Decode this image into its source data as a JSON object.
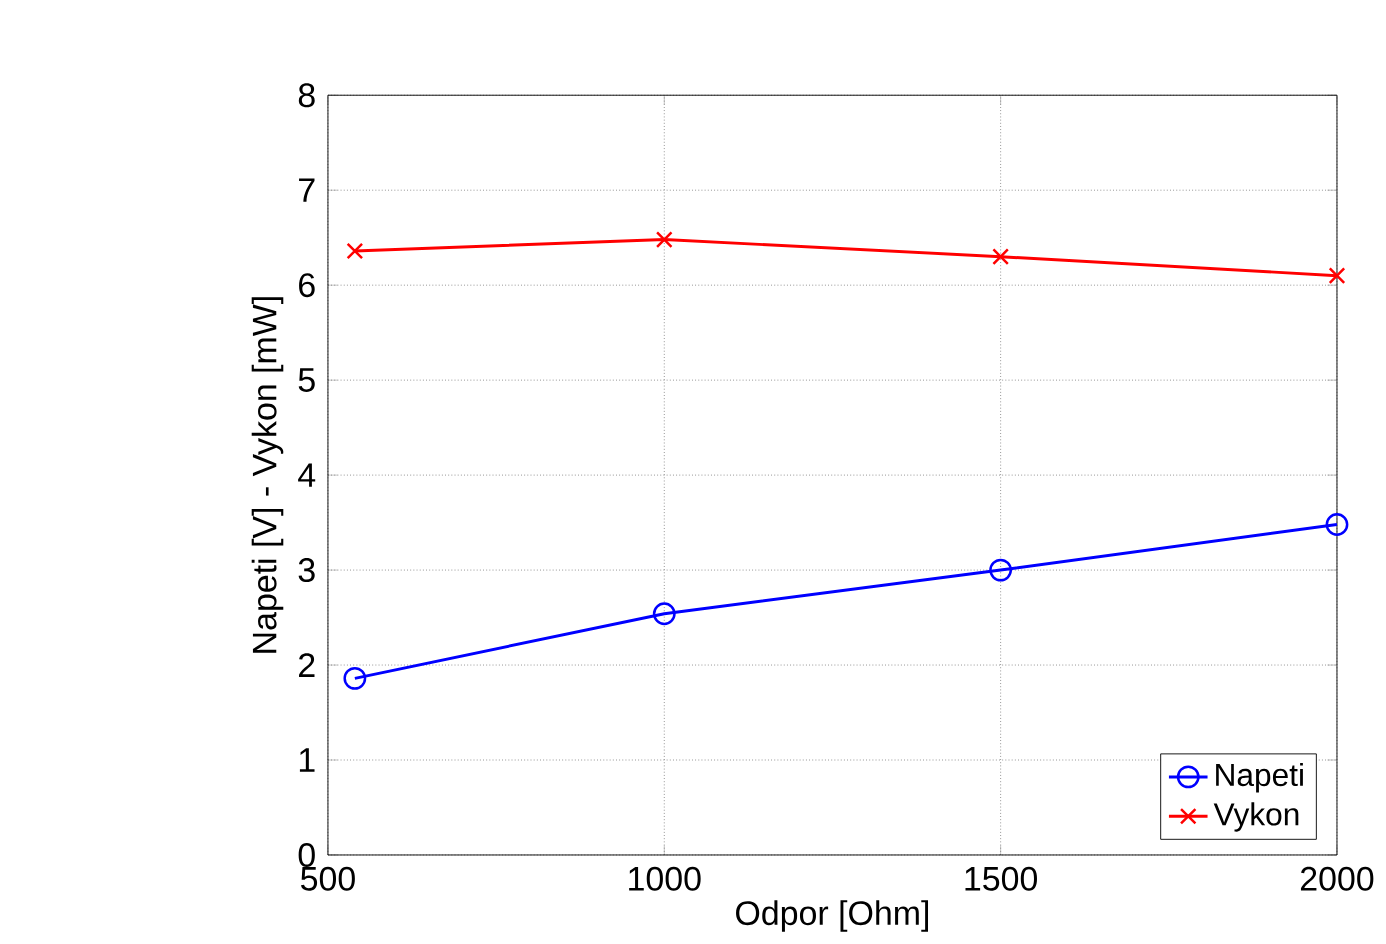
{
  "chart_data": {
    "type": "line",
    "xlabel": "Odpor [Ohm]",
    "ylabel": "Napeti [V] - Vykon [mW]",
    "x": [
      540,
      1000,
      1500,
      2000
    ],
    "series": [
      {
        "name": "Napeti",
        "color": "#0000ff",
        "marker": "circle",
        "values": [
          1.86,
          2.54,
          3.0,
          3.48
        ]
      },
      {
        "name": "Vykon",
        "color": "#ff0000",
        "marker": "cross",
        "values": [
          6.36,
          6.48,
          6.3,
          6.1
        ]
      }
    ],
    "xlim": [
      500,
      2000
    ],
    "xticks": [
      500,
      1000,
      1500,
      2000
    ],
    "ylim": [
      0,
      8
    ],
    "yticks": [
      0,
      1,
      2,
      3,
      4,
      5,
      6,
      7,
      8
    ],
    "grid": true,
    "legend": "bottom right",
    "line_style": "solid"
  }
}
